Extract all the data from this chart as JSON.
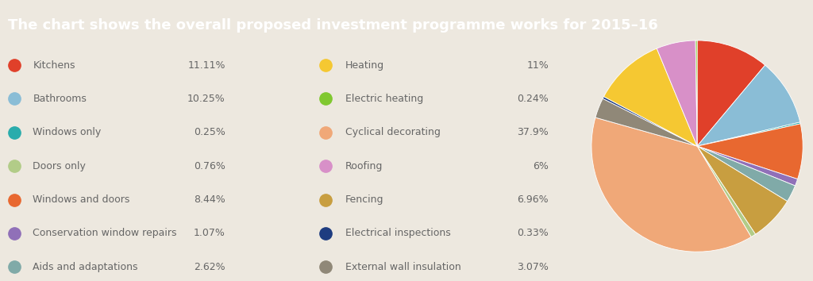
{
  "title": "The chart shows the overall proposed investment programme works for 2015–16",
  "title_bg": "#2badb0",
  "title_color": "#ffffff",
  "bg_color": "#ede8df",
  "labels": [
    "Kitchens",
    "Bathrooms",
    "Windows only",
    "Doors only",
    "Windows and doors",
    "Conservation window repairs",
    "Aids and adaptations",
    "Heating",
    "Electric heating",
    "Cyclical decorating",
    "Roofing",
    "Fencing",
    "Electrical inspections",
    "External wall insulation"
  ],
  "values": [
    11.11,
    10.25,
    0.25,
    0.76,
    8.44,
    1.07,
    2.62,
    11.0,
    0.24,
    37.9,
    6.0,
    6.96,
    0.33,
    3.07
  ],
  "pct_labels": [
    "11.11%",
    "10.25%",
    "0.25%",
    "0.76%",
    "8.44%",
    "1.07%",
    "2.62%",
    "11%",
    "0.24%",
    "37.9%",
    "6%",
    "6.96%",
    "0.33%",
    "3.07%"
  ],
  "colors": [
    "#e0402a",
    "#8abdd6",
    "#2aacac",
    "#b2cc88",
    "#e86830",
    "#9070b8",
    "#80aaa8",
    "#f5c832",
    "#80c830",
    "#f0a878",
    "#d890c8",
    "#c89e40",
    "#1e3c80",
    "#908878"
  ],
  "legend_left_labels": [
    "Kitchens",
    "Bathrooms",
    "Windows only",
    "Doors only",
    "Windows and doors",
    "Conservation window repairs",
    "Aids and adaptations"
  ],
  "legend_left_pcts": [
    "11.11%",
    "10.25%",
    "0.25%",
    "0.76%",
    "8.44%",
    "1.07%",
    "2.62%"
  ],
  "legend_left_colors": [
    "#e0402a",
    "#8abdd6",
    "#2aacac",
    "#b2cc88",
    "#e86830",
    "#9070b8",
    "#80aaa8"
  ],
  "legend_right_labels": [
    "Heating",
    "Electric heating",
    "Cyclical decorating",
    "Roofing",
    "Fencing",
    "Electrical inspections",
    "External wall insulation"
  ],
  "legend_right_pcts": [
    "11%",
    "0.24%",
    "37.9%",
    "6%",
    "6.96%",
    "0.33%",
    "3.07%"
  ],
  "legend_right_colors": [
    "#f5c832",
    "#80c830",
    "#f0a878",
    "#d890c8",
    "#c89e40",
    "#1e3c80",
    "#908878"
  ],
  "pie_order": [
    0,
    1,
    2,
    4,
    5,
    6,
    11,
    3,
    9,
    13,
    12,
    7,
    10,
    8
  ],
  "text_color": "#666666",
  "font_size": 9.0,
  "title_font_size": 13.0
}
